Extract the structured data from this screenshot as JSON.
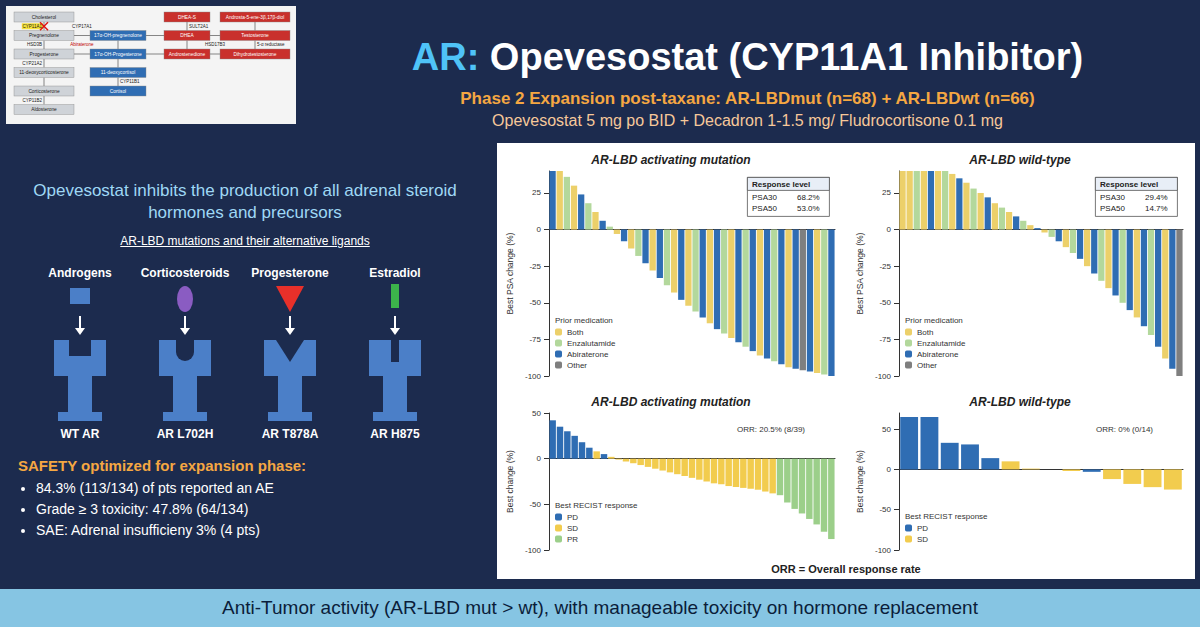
{
  "slide": {
    "title_prefix": "AR:",
    "title": "Opevesostat (CYP11A1 Inhibitor)",
    "subtitle": "Phase 2 Expansion post-taxane: AR-LBDmut (n=68) + AR-LBDwt (n=66)",
    "regimen": "Opevesostat 5 mg po BID + Decadron 1-1.5 mg/ Fludrocortisone 0.1 mg",
    "mechanism": "Opevesostat inhibits the production of all adrenal steroid hormones and precursors",
    "ligands_heading": "AR-LBD mutations and their alternative ligands",
    "receptors": [
      {
        "ligand": "Androgens",
        "receptor": "WT AR"
      },
      {
        "ligand": "Corticosteroids",
        "receptor": "AR L702H"
      },
      {
        "ligand": "Progesterone",
        "receptor": "AR T878A"
      },
      {
        "ligand": "Estradiol",
        "receptor": "AR H875"
      }
    ],
    "safety": {
      "heading": "SAFETY optimized for expansion phase:",
      "bullets": [
        "84.3% (113/134) of pts reported an AE",
        "Grade ≥ 3 toxicity: 47.8% (64/134)",
        "SAE: Adrenal insufficieny 3% (4 pts)"
      ]
    },
    "panel_footnote": "ORR = Overall response rate",
    "conclusion": "Anti-Tumor activity (AR-LBD mut > wt), with manageable toxicity on hormone replacement",
    "pathway": {
      "columns": [
        [
          "Cholesterol",
          "Pregnenolone",
          "Progesterone",
          "11-deoxycorticosterone",
          "Corticosterone",
          "Aldosterone"
        ],
        [
          "17α-OH-pregnenolone",
          "17α-OH-Progesterone",
          "11-deoxycortisol",
          "Cortisol"
        ],
        [
          "DHEA-S",
          "DHEA",
          "Androstenedione"
        ],
        [
          "Androsta-5-ene-3β,17β-diol",
          "Testosterone",
          "Dihydrotestosterone"
        ]
      ],
      "enzymes": [
        "CYP11A1",
        "CYP17A1",
        "Abiraterone",
        "HSD3B",
        "CYP21A2",
        "CYP11B1",
        "CYP11B2",
        "SULT2A1",
        "HSD17B3",
        "5-α reductase"
      ]
    }
  },
  "chart_data": [
    {
      "type": "bar",
      "title": "AR-LBD activating mutation",
      "ylabel": "Best PSA change (%)",
      "stacked": true,
      "grid": false,
      "tick_labels": "y",
      "legend": "bottom-left",
      "legend_title": "Prior medication",
      "ylim": [
        -100,
        40
      ],
      "yticks": [
        -100,
        -75,
        -50,
        -25,
        0,
        25
      ],
      "response_level": {
        "title": "Response level",
        "rows": [
          {
            "name": "PSA30",
            "value": 68.2,
            "label": "68.2%"
          },
          {
            "name": "PSA50",
            "value": 53,
            "label": "53.0%"
          }
        ]
      },
      "series": [
        {
          "name": "Both",
          "color": "#ecd06a",
          "values": [
            null,
            40,
            null,
            30,
            null,
            null,
            12,
            null,
            null,
            -3,
            null,
            -13,
            null,
            null,
            -28,
            null,
            null,
            -43,
            null,
            -52,
            null,
            null,
            -64,
            null,
            null,
            -74,
            null,
            null,
            null,
            -86,
            null,
            null,
            null,
            -94,
            null,
            null,
            null,
            -98,
            null,
            null
          ]
        },
        {
          "name": "Enzalutamide",
          "color": "#b3d89c",
          "values": [
            null,
            null,
            36,
            null,
            null,
            18,
            null,
            null,
            2,
            null,
            null,
            null,
            -18,
            null,
            null,
            null,
            -38,
            null,
            null,
            null,
            -56,
            null,
            null,
            null,
            -71,
            null,
            null,
            -80,
            null,
            null,
            null,
            -90,
            null,
            null,
            null,
            null,
            null,
            null,
            -99,
            null
          ]
        },
        {
          "name": "Abiraterone",
          "color": "#2f6db3",
          "values": [
            40,
            null,
            null,
            null,
            24,
            null,
            null,
            6,
            null,
            null,
            -8,
            null,
            null,
            -23,
            null,
            -33,
            null,
            null,
            -48,
            null,
            null,
            -60,
            null,
            -68,
            null,
            null,
            -77,
            null,
            -83,
            null,
            -88,
            null,
            -92,
            null,
            -95,
            null,
            -97,
            null,
            null,
            -100
          ]
        },
        {
          "name": "Other",
          "color": "#7f7f7f",
          "values": [
            null,
            null,
            null,
            null,
            null,
            null,
            null,
            null,
            null,
            null,
            null,
            null,
            null,
            null,
            null,
            null,
            null,
            null,
            null,
            null,
            null,
            null,
            null,
            null,
            null,
            null,
            null,
            null,
            null,
            null,
            null,
            null,
            null,
            null,
            null,
            -96,
            null,
            null,
            null,
            null
          ]
        }
      ]
    },
    {
      "type": "bar",
      "title": "AR-LBD wild-type",
      "ylabel": "Best PSA change (%)",
      "stacked": true,
      "grid": false,
      "tick_labels": "y",
      "legend": "bottom-left",
      "legend_title": "Prior medication",
      "ylim": [
        -100,
        40
      ],
      "yticks": [
        -100,
        -75,
        -50,
        -25,
        0,
        25
      ],
      "response_level": {
        "title": "Response level",
        "rows": [
          {
            "name": "PSA30",
            "value": 29.4,
            "label": "29.4%"
          },
          {
            "name": "PSA50",
            "value": 14.7,
            "label": "14.7%"
          }
        ]
      },
      "series": [
        {
          "name": "Both",
          "color": "#ecd06a",
          "values": [
            40,
            40,
            null,
            40,
            null,
            40,
            null,
            38,
            null,
            32,
            null,
            25,
            null,
            18,
            null,
            12,
            null,
            null,
            3,
            null,
            -2,
            null,
            null,
            -12,
            null,
            null,
            -25,
            null,
            null,
            -40,
            null,
            null,
            null,
            -60,
            null,
            null,
            null,
            -88,
            null,
            null
          ]
        },
        {
          "name": "Enzalutamide",
          "color": "#b3d89c",
          "values": [
            null,
            null,
            40,
            null,
            null,
            null,
            40,
            null,
            null,
            null,
            28,
            null,
            null,
            null,
            15,
            null,
            null,
            6,
            null,
            null,
            null,
            -5,
            null,
            null,
            -16,
            null,
            null,
            null,
            -35,
            null,
            null,
            -50,
            null,
            null,
            null,
            -72,
            null,
            null,
            null,
            null
          ]
        },
        {
          "name": "Abiraterone",
          "color": "#2f6db3",
          "values": [
            null,
            null,
            null,
            null,
            40,
            null,
            null,
            null,
            35,
            null,
            null,
            null,
            22,
            null,
            null,
            null,
            9,
            null,
            null,
            1,
            null,
            null,
            -8,
            null,
            null,
            -20,
            null,
            -30,
            null,
            null,
            -45,
            null,
            -55,
            null,
            -66,
            null,
            -80,
            null,
            -95,
            null
          ]
        },
        {
          "name": "Other",
          "color": "#7f7f7f",
          "values": [
            null,
            null,
            null,
            null,
            null,
            null,
            null,
            null,
            null,
            null,
            null,
            null,
            null,
            null,
            null,
            null,
            null,
            null,
            null,
            null,
            null,
            null,
            null,
            null,
            null,
            null,
            null,
            null,
            null,
            null,
            null,
            null,
            null,
            null,
            null,
            null,
            null,
            null,
            null,
            -100
          ]
        }
      ]
    },
    {
      "type": "bar",
      "title": "AR-LBD activating mutation",
      "ylabel": "Best change (%)",
      "stacked": true,
      "grid": false,
      "tick_labels": "y",
      "legend": "bottom-left",
      "legend_title": "Best RECIST response",
      "ylim": [
        -100,
        50
      ],
      "yticks": [
        -100,
        -50,
        0,
        50
      ],
      "annotation": "ORR: 20.5% (8/39)",
      "series": [
        {
          "name": "PD",
          "color": "#2f6db3",
          "values": [
            42,
            35,
            30,
            25,
            18,
            12,
            null,
            5,
            null,
            null,
            null,
            null,
            null,
            null,
            null,
            null,
            null,
            null,
            null,
            null,
            null,
            null,
            null,
            null,
            null,
            null,
            null,
            null,
            null,
            null,
            null,
            null,
            null,
            null,
            null,
            null,
            null,
            null,
            null
          ]
        },
        {
          "name": "SD",
          "color": "#f2cc4e",
          "values": [
            null,
            null,
            null,
            null,
            null,
            null,
            8,
            null,
            2,
            -1,
            -3,
            -5,
            -7,
            -9,
            -11,
            -13,
            -15,
            -17,
            -19,
            -21,
            -23,
            -25,
            -27,
            -28,
            -30,
            -31,
            -32,
            -33,
            -34,
            -36,
            -38,
            null,
            null,
            null,
            null,
            null,
            null,
            null,
            null
          ]
        },
        {
          "name": "PR",
          "color": "#9ccf8a",
          "values": [
            null,
            null,
            null,
            null,
            null,
            null,
            null,
            null,
            null,
            null,
            null,
            null,
            null,
            null,
            null,
            null,
            null,
            null,
            null,
            null,
            null,
            null,
            null,
            null,
            null,
            null,
            null,
            null,
            null,
            null,
            null,
            -40,
            -48,
            -55,
            -60,
            -66,
            -72,
            -80,
            -88
          ]
        }
      ]
    },
    {
      "type": "bar",
      "title": "AR-LBD wild-type",
      "ylabel": "Best change (%)",
      "stacked": true,
      "grid": false,
      "tick_labels": "y",
      "legend": "bottom-left",
      "legend_title": "Best RECIST response",
      "ylim": [
        -100,
        70
      ],
      "yticks": [
        -100,
        -50,
        0,
        50
      ],
      "annotation": "ORR: 0% (0/14)",
      "series": [
        {
          "name": "PD",
          "color": "#2f6db3",
          "values": [
            65,
            65,
            33,
            31,
            14,
            null,
            null,
            null,
            null,
            -3,
            null,
            null,
            null,
            null
          ]
        },
        {
          "name": "SD",
          "color": "#f2cc4e",
          "values": [
            null,
            null,
            null,
            null,
            null,
            10,
            1,
            0,
            -2,
            null,
            -12,
            -18,
            -22,
            -25
          ]
        }
      ]
    }
  ]
}
